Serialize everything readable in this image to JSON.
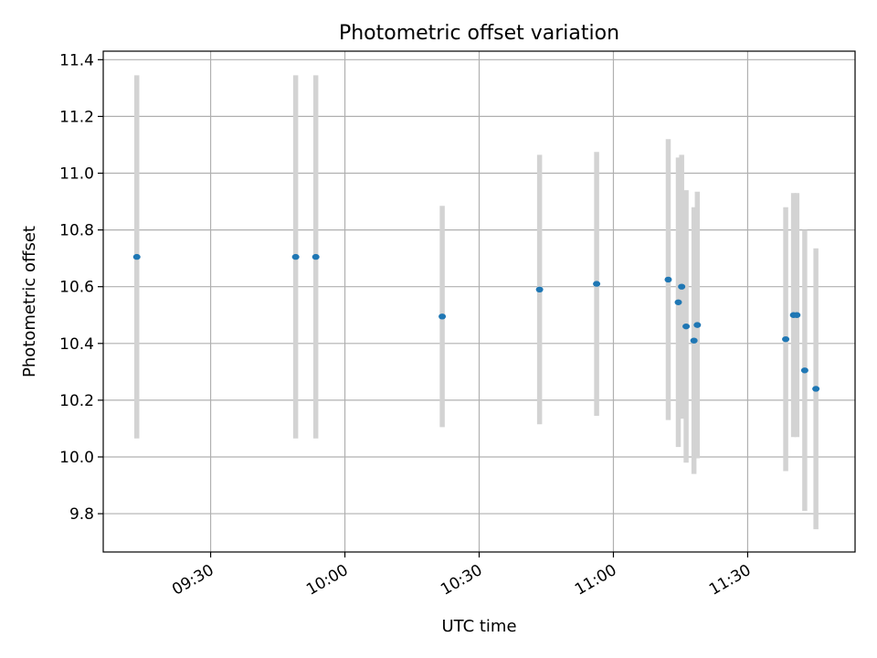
{
  "chart_data": {
    "type": "scatter",
    "title": "Photometric offset variation",
    "xlabel": "UTC time",
    "ylabel": "Photometric offset",
    "x_axis_kind": "time",
    "xlim": [
      "09:06",
      "11:54"
    ],
    "ylim": [
      9.665,
      11.43
    ],
    "x_ticks": [
      "09:30",
      "10:00",
      "10:30",
      "11:00",
      "11:30"
    ],
    "y_ticks": [
      9.8,
      10.0,
      10.2,
      10.4,
      10.6,
      10.8,
      11.0,
      11.2,
      11.4
    ],
    "grid": true,
    "legend": "none",
    "colors": {
      "point": "#1f77b4",
      "errorbar": "#d3d3d3",
      "grid": "#b0b0b0"
    },
    "series": [
      {
        "points": [
          {
            "x": "09:13:30",
            "y": 10.705,
            "err": 0.64
          },
          {
            "x": "09:49:00",
            "y": 10.705,
            "err": 0.64
          },
          {
            "x": "09:53:30",
            "y": 10.705,
            "err": 0.64
          },
          {
            "x": "10:21:45",
            "y": 10.495,
            "err": 0.39
          },
          {
            "x": "10:43:30",
            "y": 10.59,
            "err": 0.475
          },
          {
            "x": "10:56:15",
            "y": 10.61,
            "err": 0.465
          },
          {
            "x": "11:12:15",
            "y": 10.625,
            "err": 0.495
          },
          {
            "x": "11:14:30",
            "y": 10.545,
            "err": 0.51
          },
          {
            "x": "11:15:15",
            "y": 10.6,
            "err": 0.465
          },
          {
            "x": "11:16:15",
            "y": 10.46,
            "err": 0.48
          },
          {
            "x": "11:18:00",
            "y": 10.41,
            "err": 0.47
          },
          {
            "x": "11:18:45",
            "y": 10.465,
            "err": 0.47
          },
          {
            "x": "11:38:30",
            "y": 10.415,
            "err": 0.465
          },
          {
            "x": "11:40:15",
            "y": 10.5,
            "err": 0.43
          },
          {
            "x": "11:41:00",
            "y": 10.5,
            "err": 0.43
          },
          {
            "x": "11:42:45",
            "y": 10.305,
            "err": 0.495
          },
          {
            "x": "11:45:15",
            "y": 10.24,
            "err": 0.495
          }
        ]
      }
    ]
  }
}
